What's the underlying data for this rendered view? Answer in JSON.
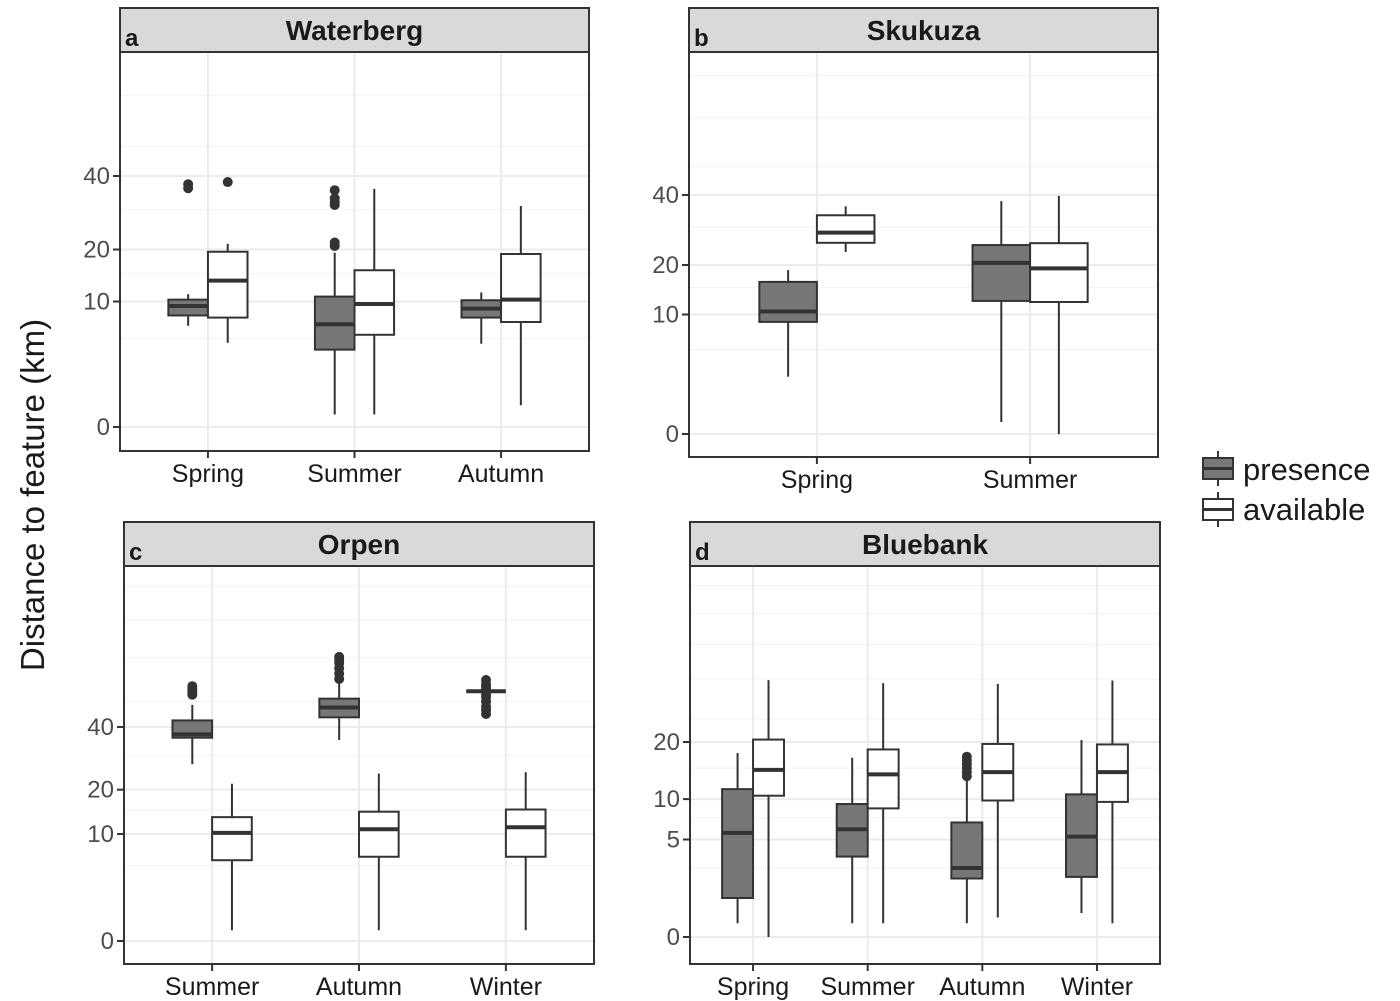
{
  "ylabel": "Distance to feature (km)",
  "legend": {
    "placement": "right",
    "items": [
      {
        "label": "presence",
        "fill": "#777777"
      },
      {
        "label": "available",
        "fill": "#ffffff"
      }
    ]
  },
  "colors": {
    "presence": "#777777",
    "available": "#ffffff",
    "strip": "#d9d9d9",
    "grid": "#ebebeb",
    "outline": "#333333"
  },
  "chart_data": [
    {
      "type": "box",
      "tag": "a",
      "title": "Waterberg",
      "categories": [
        "Spring",
        "Summer",
        "Autumn"
      ],
      "y_ticks": [
        0,
        10,
        20,
        40
      ],
      "y_scale": "sqrt",
      "ylim": [
        0,
        70
      ],
      "grid": true,
      "boxes": [
        {
          "category": "Spring",
          "group": "presence",
          "min": 6.5,
          "q1": 7.9,
          "median": 9.3,
          "q3": 10.3,
          "max": 11.2,
          "outliers": [
            36.2,
            37.4
          ]
        },
        {
          "category": "Spring",
          "group": "available",
          "min": 4.5,
          "q1": 7.6,
          "median": 13.6,
          "q3": 19.5,
          "max": 21.3,
          "outliers": [
            38.1
          ]
        },
        {
          "category": "Summer",
          "group": "presence",
          "min": 0.1,
          "q1": 3.8,
          "median": 6.7,
          "q3": 10.8,
          "max": 19.3,
          "outliers": [
            20.8,
            21.6,
            31.3,
            32.1,
            33.2,
            35.6
          ]
        },
        {
          "category": "Summer",
          "group": "available",
          "min": 0.1,
          "q1": 5.4,
          "median": 9.6,
          "q3": 15.6,
          "max": 36.0,
          "outliers": []
        },
        {
          "category": "Autumn",
          "group": "presence",
          "min": 4.4,
          "q1": 7.6,
          "median": 8.9,
          "q3": 10.2,
          "max": 11.5,
          "outliers": []
        },
        {
          "category": "Autumn",
          "group": "available",
          "min": 0.3,
          "q1": 7.0,
          "median": 10.3,
          "q3": 19.0,
          "max": 31.0,
          "outliers": []
        }
      ]
    },
    {
      "type": "box",
      "tag": "b",
      "title": "Skukuza",
      "categories": [
        "Spring",
        "Summer"
      ],
      "y_ticks": [
        0,
        10,
        20,
        40
      ],
      "y_scale": "sqrt",
      "ylim": [
        0,
        70
      ],
      "grid": true,
      "boxes": [
        {
          "category": "Spring",
          "group": "presence",
          "min": 2.3,
          "q1": 8.8,
          "median": 10.5,
          "q3": 16.2,
          "max": 18.8,
          "outliers": []
        },
        {
          "category": "Spring",
          "group": "available",
          "min": 23.2,
          "q1": 25.6,
          "median": 28.4,
          "q3": 33.5,
          "max": 36.3,
          "outliers": []
        },
        {
          "category": "Summer",
          "group": "presence",
          "min": 0.1,
          "q1": 12.4,
          "median": 20.5,
          "q3": 25.0,
          "max": 38.0,
          "outliers": []
        },
        {
          "category": "Summer",
          "group": "available",
          "min": 0.0,
          "q1": 12.2,
          "median": 19.2,
          "q3": 25.5,
          "max": 39.7,
          "outliers": []
        }
      ]
    },
    {
      "type": "box",
      "tag": "c",
      "title": "Orpen",
      "categories": [
        "Summer",
        "Autumn",
        "Winter"
      ],
      "y_ticks": [
        0,
        10,
        20,
        40
      ],
      "y_scale": "sqrt",
      "ylim": [
        0,
        100
      ],
      "grid": true,
      "boxes": [
        {
          "category": "Summer",
          "group": "presence",
          "min": 27.3,
          "q1": 36.1,
          "median": 37.3,
          "q3": 42.5,
          "max": 48.7,
          "outliers": [
            53.0,
            54.2,
            55.3,
            56.7
          ]
        },
        {
          "category": "Summer",
          "group": "available",
          "min": 0.1,
          "q1": 5.7,
          "median": 10.2,
          "q3": 13.4,
          "max": 21.6,
          "outliers": []
        },
        {
          "category": "Autumn",
          "group": "presence",
          "min": 35.3,
          "q1": 43.7,
          "median": 47.6,
          "q3": 51.3,
          "max": 58.4,
          "outliers": [
            60.0,
            62.5,
            65.0,
            67.5,
            69.0,
            70.5
          ]
        },
        {
          "category": "Autumn",
          "group": "available",
          "min": 0.1,
          "q1": 6.2,
          "median": 10.9,
          "q3": 14.6,
          "max": 24.5,
          "outliers": []
        },
        {
          "category": "Winter",
          "group": "presence",
          "min": 54.5,
          "q1": 54.5,
          "median": 54.5,
          "q3": 54.5,
          "max": 54.5,
          "outliers": [
            45.0,
            46.5,
            48.0,
            50.0,
            52.0,
            53.0,
            55.5,
            56.5,
            57.5,
            59.5
          ]
        },
        {
          "category": "Winter",
          "group": "available",
          "min": 0.1,
          "q1": 6.2,
          "median": 11.3,
          "q3": 15.1,
          "max": 24.9,
          "outliers": []
        }
      ]
    },
    {
      "type": "box",
      "tag": "d",
      "title": "Bluebank",
      "categories": [
        "Spring",
        "Summer",
        "Autumn",
        "Winter"
      ],
      "y_ticks": [
        0,
        5,
        10,
        20
      ],
      "y_scale": "sqrt",
      "ylim": [
        0,
        40
      ],
      "grid": true,
      "boxes": [
        {
          "category": "Spring",
          "group": "presence",
          "min": 0.1,
          "q1": 0.8,
          "median": 5.7,
          "q3": 11.5,
          "max": 17.8,
          "outliers": []
        },
        {
          "category": "Spring",
          "group": "available",
          "min": 0.0,
          "q1": 10.5,
          "median": 14.7,
          "q3": 20.5,
          "max": 34.7,
          "outliers": []
        },
        {
          "category": "Summer",
          "group": "presence",
          "min": 0.1,
          "q1": 3.4,
          "median": 6.1,
          "q3": 9.3,
          "max": 16.9,
          "outliers": []
        },
        {
          "category": "Summer",
          "group": "available",
          "min": 0.1,
          "q1": 8.7,
          "median": 13.9,
          "q3": 18.5,
          "max": 33.9,
          "outliers": []
        },
        {
          "category": "Autumn",
          "group": "presence",
          "min": 0.1,
          "q1": 1.8,
          "median": 2.5,
          "q3": 6.9,
          "max": 12.9,
          "outliers": [
            13.6,
            14.3,
            15.0,
            15.7,
            16.4,
            17.1
          ]
        },
        {
          "category": "Autumn",
          "group": "available",
          "min": 0.2,
          "q1": 9.8,
          "median": 14.3,
          "q3": 19.6,
          "max": 33.7,
          "outliers": []
        },
        {
          "category": "Winter",
          "group": "presence",
          "min": 0.3,
          "q1": 1.9,
          "median": 5.3,
          "q3": 10.7,
          "max": 20.4,
          "outliers": []
        },
        {
          "category": "Winter",
          "group": "available",
          "min": 0.1,
          "q1": 9.6,
          "median": 14.3,
          "q3": 19.5,
          "max": 34.6,
          "outliers": []
        }
      ]
    }
  ]
}
